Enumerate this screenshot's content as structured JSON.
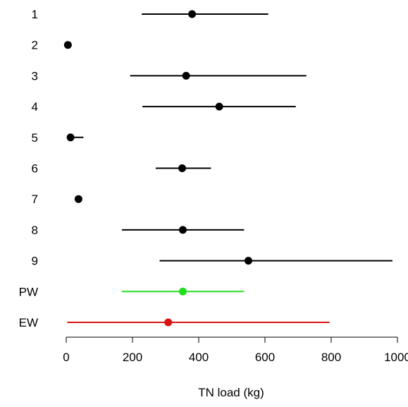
{
  "chart_data": {
    "type": "forest",
    "xlabel": "TN load (kg)",
    "xlim": [
      0,
      1000
    ],
    "xticks": [
      0,
      200,
      400,
      600,
      800,
      1000
    ],
    "rows": [
      {
        "label": "1",
        "estimate": 380,
        "lower": 228,
        "upper": 610,
        "color": "#000000"
      },
      {
        "label": "2",
        "estimate": 5,
        "lower": 5,
        "upper": 5,
        "color": "#000000"
      },
      {
        "label": "3",
        "estimate": 362,
        "lower": 193,
        "upper": 725,
        "color": "#000000"
      },
      {
        "label": "4",
        "estimate": 462,
        "lower": 230,
        "upper": 693,
        "color": "#000000"
      },
      {
        "label": "5",
        "estimate": 13,
        "lower": 13,
        "upper": 52,
        "color": "#000000"
      },
      {
        "label": "6",
        "estimate": 350,
        "lower": 270,
        "upper": 437,
        "color": "#000000"
      },
      {
        "label": "7",
        "estimate": 37,
        "lower": 37,
        "upper": 37,
        "color": "#000000"
      },
      {
        "label": "8",
        "estimate": 352,
        "lower": 168,
        "upper": 537,
        "color": "#000000"
      },
      {
        "label": "9",
        "estimate": 550,
        "lower": 282,
        "upper": 985,
        "color": "#000000"
      },
      {
        "label": "PW",
        "estimate": 352,
        "lower": 168,
        "upper": 537,
        "color": "#22dd22"
      },
      {
        "label": "EW",
        "estimate": 308,
        "lower": 3,
        "upper": 795,
        "color": "#dd1111"
      }
    ]
  }
}
